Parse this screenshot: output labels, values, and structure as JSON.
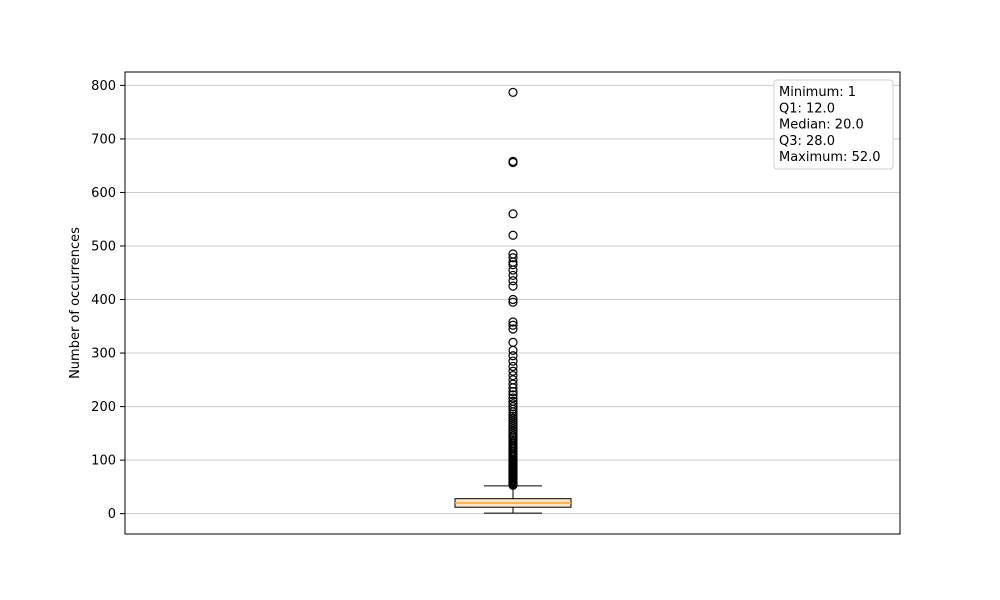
{
  "chart_data": {
    "type": "box",
    "title": "",
    "xlabel": "",
    "ylabel": "Number of occurrences",
    "ylim": [
      -38,
      825
    ],
    "yticks": [
      0,
      100,
      200,
      300,
      400,
      500,
      600,
      700,
      800
    ],
    "grid": "horizontal",
    "box": {
      "minimum": 1,
      "q1": 12.0,
      "median": 20.0,
      "q3": 28.0,
      "maximum": 52.0,
      "box_color": "#fde5c8",
      "median_color": "#f5a33c"
    },
    "outliers": [
      53,
      55,
      57,
      59,
      61,
      63,
      65,
      67,
      69,
      71,
      73,
      75,
      77,
      79,
      81,
      83,
      85,
      87,
      89,
      91,
      93,
      95,
      97,
      99,
      101,
      104,
      107,
      110,
      113,
      116,
      119,
      122,
      125,
      128,
      131,
      134,
      137,
      140,
      143,
      146,
      150,
      154,
      158,
      162,
      166,
      170,
      174,
      178,
      182,
      186,
      190,
      195,
      200,
      205,
      210,
      216,
      222,
      228,
      235,
      242,
      250,
      258,
      266,
      275,
      285,
      295,
      305,
      320,
      345,
      352,
      358,
      395,
      400,
      425,
      435,
      445,
      455,
      465,
      470,
      478,
      485,
      520,
      560,
      656,
      658,
      787
    ],
    "stats_box": {
      "lines": [
        "Minimum: 1",
        "Q1: 12.0",
        "Median: 20.0",
        "Q3: 28.0",
        "Maximum: 52.0"
      ],
      "placement": "top-right"
    }
  }
}
